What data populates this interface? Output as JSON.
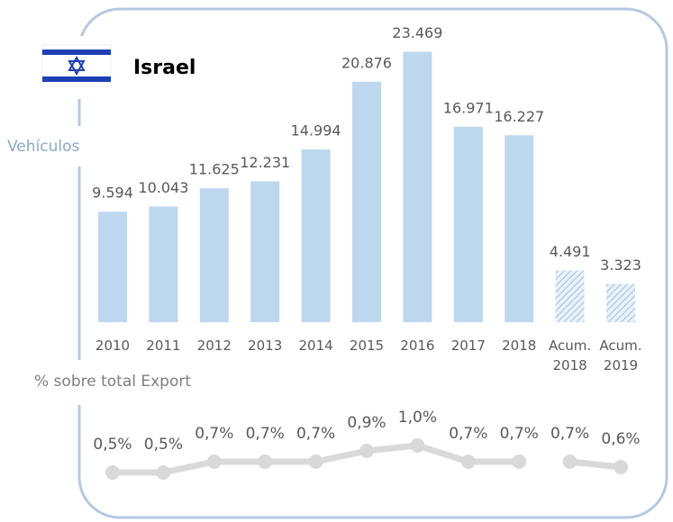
{
  "chart_data": [
    {
      "type": "bar",
      "title": "Israel",
      "ylabel": "Vehículos",
      "categories": [
        "2010",
        "2011",
        "2012",
        "2013",
        "2014",
        "2015",
        "2016",
        "2017",
        "2018",
        "Acum. 2018",
        "Acum. 2019"
      ],
      "values": [
        9594,
        10043,
        11625,
        12231,
        14994,
        20876,
        23469,
        16971,
        16227,
        4491,
        3323
      ],
      "value_labels": [
        "9.594",
        "10.043",
        "11.625",
        "12.231",
        "14.994",
        "20.876",
        "23.469",
        "16.971",
        "16.227",
        "4.491",
        "3.323"
      ],
      "hatched": [
        false,
        false,
        false,
        false,
        false,
        false,
        false,
        false,
        false,
        true,
        true
      ],
      "color": "#bdd7ee",
      "ylim": [
        0,
        25000
      ]
    },
    {
      "type": "line",
      "title": "% sobre total Export",
      "values": [
        0.5,
        0.5,
        0.7,
        0.7,
        0.7,
        0.9,
        1.0,
        0.7,
        0.7,
        0.7,
        0.6
      ],
      "value_labels": [
        "0,5%",
        "0,5%",
        "0,7%",
        "0,7%",
        "0,7%",
        "0,9%",
        "1,0%",
        "0,7%",
        "0,7%",
        "0,7%",
        "0,6%"
      ],
      "color": "#d9d9d9",
      "ylim": [
        0,
        1.2
      ]
    }
  ]
}
